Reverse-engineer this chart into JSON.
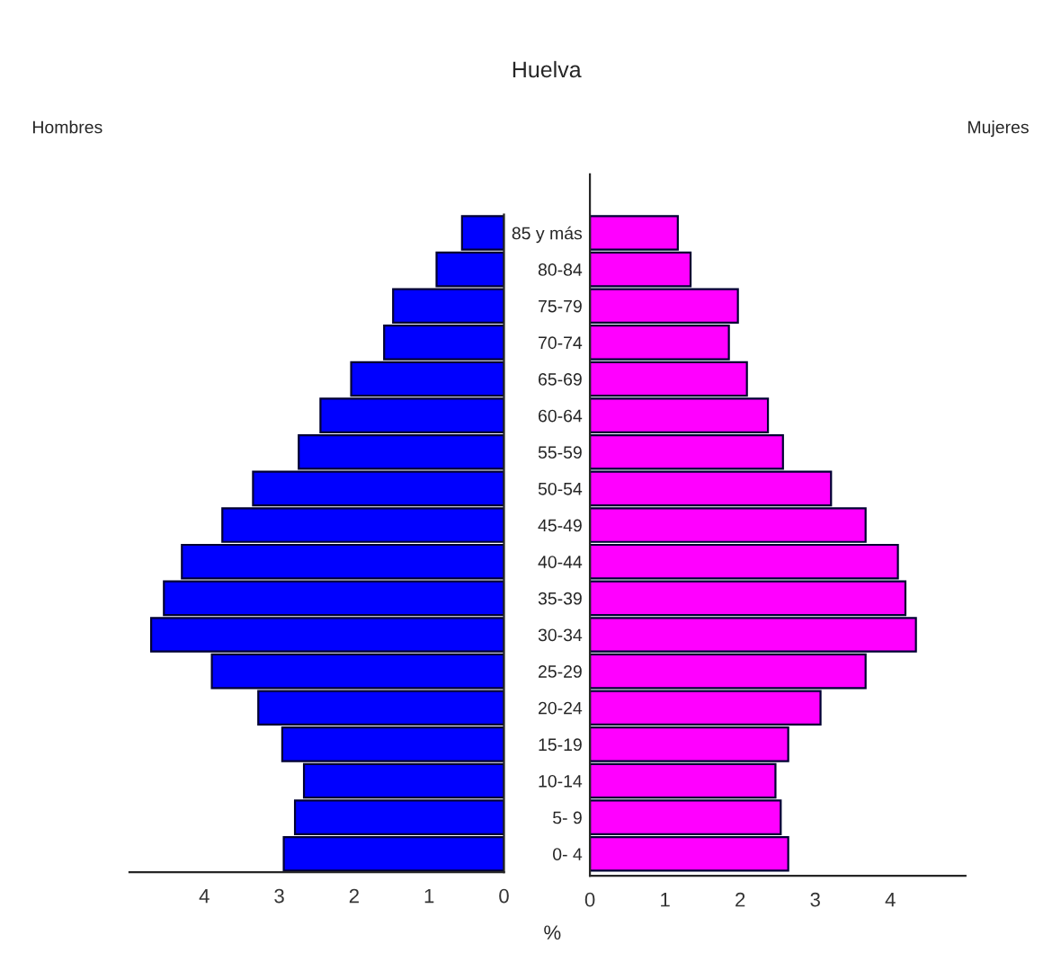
{
  "chart_data": [
    {
      "type": "bar",
      "orientation": "horizontal",
      "title": "Huelva",
      "tick_labels": "x",
      "categories": [
        null,
        null,
        null,
        null,
        null,
        null,
        null,
        null,
        null,
        null,
        null,
        null,
        null,
        null,
        null,
        null,
        null,
        null
      ],
      "series": [
        {
          "name": "Hombres",
          "color": "#0000ff",
          "values": [
            0.56,
            0.9,
            1.48,
            1.6,
            2.04,
            2.45,
            2.74,
            3.35,
            3.76,
            4.3,
            4.54,
            4.71,
            3.9,
            3.28,
            2.96,
            2.67,
            2.79,
            2.94
          ]
        }
      ],
      "xlim": [
        5,
        0
      ],
      "xticks": [
        4,
        3,
        2,
        1,
        0
      ],
      "grid": false,
      "legend": false
    },
    {
      "type": "bar",
      "orientation": "horizontal",
      "xlabel": "%",
      "categories": [
        "85 y más",
        "80-84",
        "75-79",
        "70-74",
        "65-69",
        "60-64",
        "55-59",
        "50-54",
        "45-49",
        "40-44",
        "35-39",
        "30-34",
        "25-29",
        "20-24",
        "15-19",
        "10-14",
        "5- 9",
        "0- 4"
      ],
      "series": [
        {
          "name": "Mujeres",
          "color": "#ff00ff",
          "values": [
            1.17,
            1.34,
            1.97,
            1.85,
            2.09,
            2.37,
            2.57,
            3.21,
            3.67,
            4.1,
            4.2,
            4.34,
            3.67,
            3.07,
            2.64,
            2.47,
            2.54,
            2.64
          ]
        }
      ],
      "xlim": [
        0,
        5
      ],
      "xticks": [
        0,
        1,
        2,
        3,
        4
      ],
      "grid": false,
      "legend": false
    }
  ]
}
